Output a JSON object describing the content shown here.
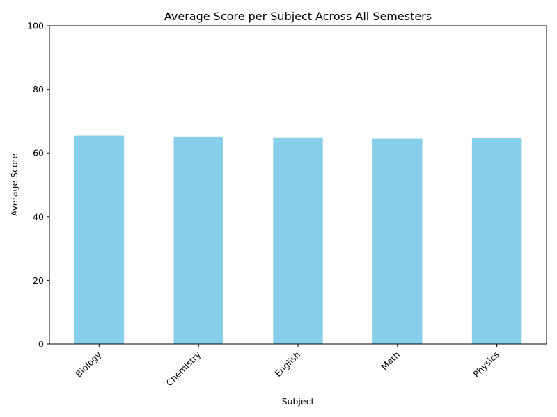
{
  "chart_data": {
    "type": "bar",
    "title": "Average Score per Subject Across All Semesters",
    "xlabel": "Subject",
    "ylabel": "Average Score",
    "categories": [
      "Biology",
      "Chemistry",
      "English",
      "Math",
      "Physics"
    ],
    "values": [
      65.6,
      65.1,
      64.9,
      64.5,
      64.7
    ],
    "ylim": [
      0,
      100
    ],
    "yticks": [
      "0",
      "20",
      "40",
      "60",
      "80",
      "100"
    ],
    "bar_color": "#87ceeb",
    "grid": false,
    "legend": "none"
  }
}
